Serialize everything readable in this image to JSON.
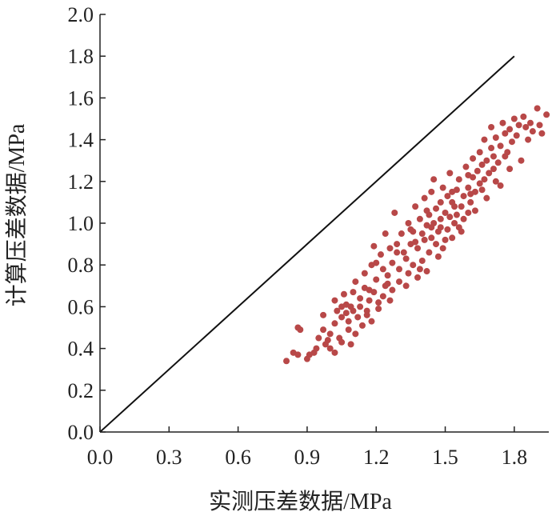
{
  "chart_data": {
    "type": "scatter",
    "title": "",
    "xlabel": "实测压差数据/MPa",
    "ylabel": "计算压差数据/MPa",
    "xlim": [
      0,
      1.95
    ],
    "ylim": [
      0,
      2.0
    ],
    "x_ticks": [
      "0.0",
      "0.3",
      "0.6",
      "0.9",
      "1.2",
      "1.5",
      "1.8"
    ],
    "y_ticks": [
      "0.0",
      "0.2",
      "0.4",
      "0.6",
      "0.8",
      "1.0",
      "1.2",
      "1.4",
      "1.6",
      "1.8",
      "2.0"
    ],
    "grid": false,
    "legend": "none",
    "reference_line": {
      "from": [
        0,
        0
      ],
      "to": [
        1.8,
        1.8
      ]
    },
    "colors": {
      "points": "#b84848",
      "line": "#111111",
      "axis": "#222222"
    },
    "series": [
      {
        "points": [
          [
            0.81,
            0.34
          ],
          [
            0.84,
            0.38
          ],
          [
            0.86,
            0.37
          ],
          [
            0.86,
            0.5
          ],
          [
            0.87,
            0.49
          ],
          [
            0.9,
            0.35
          ],
          [
            0.91,
            0.37
          ],
          [
            0.93,
            0.38
          ],
          [
            0.95,
            0.45
          ],
          [
            0.97,
            0.49
          ],
          [
            0.97,
            0.56
          ],
          [
            0.98,
            0.42
          ],
          [
            1.0,
            0.4
          ],
          [
            1.0,
            0.47
          ],
          [
            1.02,
            0.38
          ],
          [
            1.02,
            0.52
          ],
          [
            1.02,
            0.63
          ],
          [
            1.03,
            0.58
          ],
          [
            1.04,
            0.45
          ],
          [
            1.05,
            0.55
          ],
          [
            1.05,
            0.6
          ],
          [
            1.06,
            0.66
          ],
          [
            1.07,
            0.61
          ],
          [
            1.08,
            0.49
          ],
          [
            1.08,
            0.53
          ],
          [
            1.09,
            0.42
          ],
          [
            1.1,
            0.58
          ],
          [
            1.1,
            0.67
          ],
          [
            1.11,
            0.72
          ],
          [
            1.12,
            0.55
          ],
          [
            1.13,
            0.6
          ],
          [
            1.13,
            0.64
          ],
          [
            1.14,
            0.51
          ],
          [
            1.15,
            0.69
          ],
          [
            1.15,
            0.76
          ],
          [
            1.16,
            0.58
          ],
          [
            1.17,
            0.63
          ],
          [
            1.18,
            0.53
          ],
          [
            1.18,
            0.8
          ],
          [
            1.19,
            0.67
          ],
          [
            1.19,
            0.89
          ],
          [
            1.2,
            0.73
          ],
          [
            1.21,
            0.59
          ],
          [
            1.22,
            0.85
          ],
          [
            1.23,
            0.65
          ],
          [
            1.23,
            0.78
          ],
          [
            1.24,
            0.7
          ],
          [
            1.24,
            0.95
          ],
          [
            1.25,
            0.75
          ],
          [
            1.26,
            0.63
          ],
          [
            1.26,
            0.88
          ],
          [
            1.27,
            0.81
          ],
          [
            1.28,
            1.05
          ],
          [
            1.29,
            0.9
          ],
          [
            1.3,
            0.72
          ],
          [
            1.3,
            0.78
          ],
          [
            1.31,
            0.95
          ],
          [
            1.32,
            0.86
          ],
          [
            1.33,
            0.83
          ],
          [
            1.34,
            0.76
          ],
          [
            1.34,
            1.0
          ],
          [
            1.35,
            0.9
          ],
          [
            1.36,
            0.8
          ],
          [
            1.36,
            0.96
          ],
          [
            1.37,
            1.08
          ],
          [
            1.38,
            0.74
          ],
          [
            1.38,
            0.88
          ],
          [
            1.39,
            1.02
          ],
          [
            1.4,
            0.82
          ],
          [
            1.4,
            0.95
          ],
          [
            1.41,
            0.92
          ],
          [
            1.41,
            1.12
          ],
          [
            1.42,
            0.77
          ],
          [
            1.42,
            0.99
          ],
          [
            1.43,
            0.86
          ],
          [
            1.43,
            1.04
          ],
          [
            1.44,
            0.93
          ],
          [
            1.44,
            1.15
          ],
          [
            1.45,
            1.0
          ],
          [
            1.45,
            1.21
          ],
          [
            1.46,
            0.9
          ],
          [
            1.46,
            1.07
          ],
          [
            1.47,
            0.96
          ],
          [
            1.48,
            1.1
          ],
          [
            1.48,
            1.02
          ],
          [
            1.49,
            0.88
          ],
          [
            1.49,
            1.17
          ],
          [
            1.5,
            1.05
          ],
          [
            1.51,
            0.97
          ],
          [
            1.51,
            1.13
          ],
          [
            1.52,
            1.03
          ],
          [
            1.52,
            1.24
          ],
          [
            1.53,
            0.93
          ],
          [
            1.53,
            1.1
          ],
          [
            1.54,
            1.0
          ],
          [
            1.55,
            1.16
          ],
          [
            1.55,
            1.04
          ],
          [
            1.56,
            0.98
          ],
          [
            1.56,
            1.21
          ],
          [
            1.57,
            1.08
          ],
          [
            1.58,
            1.02
          ],
          [
            1.58,
            1.13
          ],
          [
            1.59,
            1.27
          ],
          [
            1.6,
            1.05
          ],
          [
            1.6,
            1.17
          ],
          [
            1.61,
            1.1
          ],
          [
            1.62,
            1.31
          ],
          [
            1.62,
            1.22
          ],
          [
            1.63,
            1.15
          ],
          [
            1.64,
            1.25
          ],
          [
            1.65,
            1.19
          ],
          [
            1.65,
            1.34
          ],
          [
            1.66,
            1.28
          ],
          [
            1.67,
            1.21
          ],
          [
            1.67,
            1.4
          ],
          [
            1.68,
            1.3
          ],
          [
            1.69,
            1.24
          ],
          [
            1.7,
            1.36
          ],
          [
            1.7,
            1.46
          ],
          [
            1.71,
            1.32
          ],
          [
            1.72,
            1.2
          ],
          [
            1.72,
            1.41
          ],
          [
            1.73,
            1.29
          ],
          [
            1.74,
            1.37
          ],
          [
            1.75,
            1.48
          ],
          [
            1.76,
            1.43
          ],
          [
            1.77,
            1.34
          ],
          [
            1.78,
            1.45
          ],
          [
            1.79,
            1.39
          ],
          [
            1.8,
            1.5
          ],
          [
            1.81,
            1.42
          ],
          [
            1.82,
            1.47
          ],
          [
            1.83,
            1.3
          ],
          [
            1.84,
            1.51
          ],
          [
            1.85,
            1.46
          ],
          [
            1.87,
            1.48
          ],
          [
            1.88,
            1.44
          ],
          [
            1.9,
            1.55
          ],
          [
            1.92,
            1.43
          ],
          [
            1.94,
            1.52
          ],
          [
            1.91,
            1.47
          ],
          [
            1.86,
            1.4
          ],
          [
            1.78,
            1.26
          ],
          [
            1.74,
            1.18
          ],
          [
            1.68,
            1.12
          ],
          [
            1.63,
            1.06
          ],
          [
            1.57,
            0.96
          ],
          [
            1.5,
            0.92
          ],
          [
            1.47,
            0.84
          ],
          [
            1.39,
            0.78
          ],
          [
            1.33,
            0.7
          ],
          [
            1.27,
            0.68
          ],
          [
            1.21,
            0.62
          ],
          [
            1.16,
            0.56
          ],
          [
            1.11,
            0.47
          ],
          [
            1.05,
            0.43
          ],
          [
            0.99,
            0.44
          ],
          [
            0.94,
            0.4
          ],
          [
            1.07,
            0.57
          ],
          [
            1.2,
            0.81
          ],
          [
            1.29,
            0.86
          ],
          [
            1.35,
            0.97
          ],
          [
            1.42,
            1.06
          ],
          [
            1.48,
            0.98
          ],
          [
            1.54,
            1.08
          ],
          [
            1.61,
            1.14
          ],
          [
            1.66,
            1.16
          ],
          [
            1.71,
            1.26
          ],
          [
            1.76,
            1.32
          ],
          [
            1.53,
            1.15
          ],
          [
            1.44,
            0.98
          ],
          [
            1.37,
            0.91
          ],
          [
            1.25,
            0.71
          ],
          [
            1.17,
            0.68
          ],
          [
            1.09,
            0.6
          ],
          [
            1.6,
            1.23
          ]
        ]
      }
    ]
  }
}
